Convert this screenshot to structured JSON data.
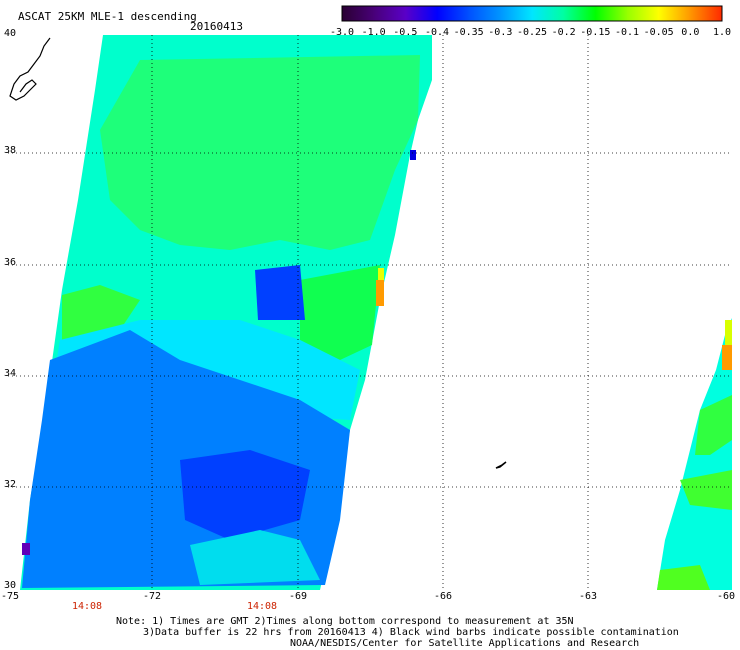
{
  "header": {
    "title": "ASCAT 25KM MLE-1 descending",
    "date": "20160413"
  },
  "colorbar": {
    "labels": [
      "-3.0",
      "-1.0",
      "-0.5",
      "-0.4",
      "-0.35",
      "-0.3",
      "-0.25",
      "-0.2",
      "-0.15",
      "-0.1",
      "-0.05",
      "0.0",
      "1.0"
    ],
    "colors": [
      "#2a0032",
      "#480078",
      "#5a00c8",
      "#0000ff",
      "#0050ff",
      "#0096ff",
      "#00e6ff",
      "#00ffa0",
      "#00ff00",
      "#96ff00",
      "#ffff00",
      "#ff9600",
      "#ff2800"
    ]
  },
  "axes": {
    "lat_labels": [
      "40",
      "38",
      "36",
      "34",
      "32",
      "30"
    ],
    "lon_labels": [
      "-75",
      "-72",
      "-69",
      "-66",
      "-63",
      "-60"
    ]
  },
  "times": [
    "14:08",
    "14:08"
  ],
  "notes": {
    "line1": "Note: 1) Times are GMT 2)Times along bottom correspond to measurement at 35N",
    "line2": "3)Data buffer is 22 hrs from 20160413 4) Black wind barbs indicate possible contamination",
    "line3": "NOAA/NESDIS/Center for Satellite Applications and Research"
  }
}
